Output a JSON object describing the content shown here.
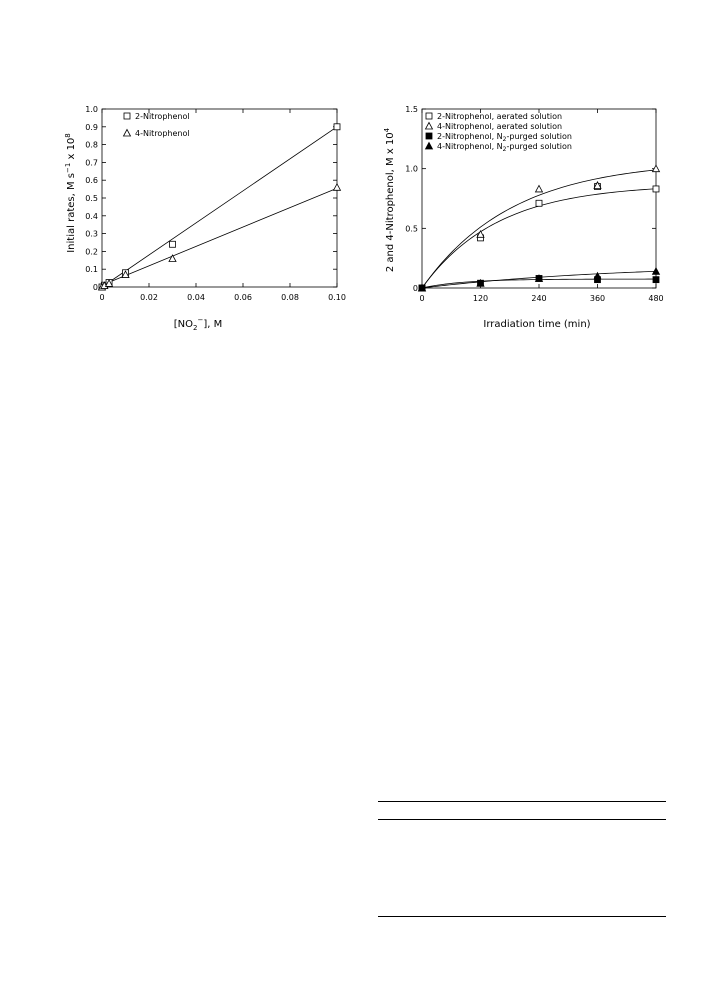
{
  "chart_data": [
    {
      "type": "scatter",
      "xlabel": "[NO2−], M",
      "ylabel": "Initial rates, M s−1 x 108",
      "xlim": [
        0,
        0.1
      ],
      "ylim": [
        0,
        1.0
      ],
      "x_ticks": [
        0,
        0.02,
        0.04,
        0.06,
        0.08,
        0.1
      ],
      "x_tick_labels": [
        "0",
        "0.02",
        "0.04",
        "0.06",
        "0.08",
        "0.10"
      ],
      "y_ticks": [
        0,
        0.1,
        0.2,
        0.3,
        0.4,
        0.5,
        0.6,
        0.7,
        0.8,
        0.9,
        1.0
      ],
      "y_tick_labels": [
        "0",
        "0.1",
        "0.2",
        "0.3",
        "0.4",
        "0.5",
        "0.6",
        "0.7",
        "0.8",
        "0.9",
        "1.0"
      ],
      "grid": false,
      "legend_position": "top-left",
      "series": [
        {
          "name": "2-Nitrophenol",
          "marker": "open-square",
          "x": [
            0,
            0.001,
            0.003,
            0.01,
            0.03,
            0.1
          ],
          "y": [
            0,
            0.01,
            0.025,
            0.08,
            0.24,
            0.9
          ],
          "fit": {
            "kind": "linear",
            "x0": 0,
            "y0": 0,
            "x1": 0.1,
            "y1": 0.9
          }
        },
        {
          "name": "4-Nitrophenol",
          "marker": "open-triangle",
          "x": [
            0,
            0.001,
            0.003,
            0.01,
            0.03,
            0.1
          ],
          "y": [
            0,
            0.008,
            0.02,
            0.07,
            0.16,
            0.56
          ],
          "fit": {
            "kind": "linear",
            "x0": 0,
            "y0": 0.01,
            "x1": 0.1,
            "y1": 0.555
          }
        }
      ]
    },
    {
      "type": "scatter",
      "xlabel": "Irradiation time (min)",
      "ylabel": "2 and 4-Nitrophenol, M x 104",
      "xlim": [
        0,
        480
      ],
      "ylim": [
        0,
        1.5
      ],
      "x_ticks": [
        0,
        120,
        240,
        360,
        480
      ],
      "x_tick_labels": [
        "0",
        "120",
        "240",
        "360",
        "480"
      ],
      "y_ticks": [
        0,
        0.5,
        1.0,
        1.5
      ],
      "y_tick_labels": [
        "0",
        "0.5",
        "1.0",
        "1.5"
      ],
      "grid": false,
      "legend_position": "top-left",
      "series": [
        {
          "name": "2-Nitrophenol, aerated solution",
          "marker": "open-square",
          "x": [
            0,
            120,
            240,
            360,
            480
          ],
          "y": [
            0,
            0.42,
            0.71,
            0.85,
            0.83
          ],
          "fit": {
            "kind": "exp",
            "a": 0.87,
            "k": 0.0065
          }
        },
        {
          "name": "4-Nitrophenol, aerated solution",
          "marker": "open-triangle",
          "x": [
            0,
            120,
            240,
            360,
            480
          ],
          "y": [
            0,
            0.45,
            0.83,
            0.86,
            1.0
          ],
          "fit": {
            "kind": "exp",
            "a": 1.07,
            "k": 0.0054
          }
        },
        {
          "name": "2-Nitrophenol, N2-purged solution",
          "marker": "filled-square",
          "x": [
            0,
            120,
            240,
            360,
            480
          ],
          "y": [
            0,
            0.04,
            0.08,
            0.07,
            0.07
          ],
          "fit": {
            "kind": "exp",
            "a": 0.075,
            "k": 0.012
          }
        },
        {
          "name": "4-Nitrophenol, N2-purged solution",
          "marker": "filled-triangle",
          "x": [
            0,
            120,
            240,
            360,
            480
          ],
          "y": [
            0,
            0.04,
            0.08,
            0.1,
            0.14
          ],
          "fit": {
            "kind": "exp",
            "a": 0.2,
            "k": 0.0025
          }
        }
      ]
    }
  ]
}
